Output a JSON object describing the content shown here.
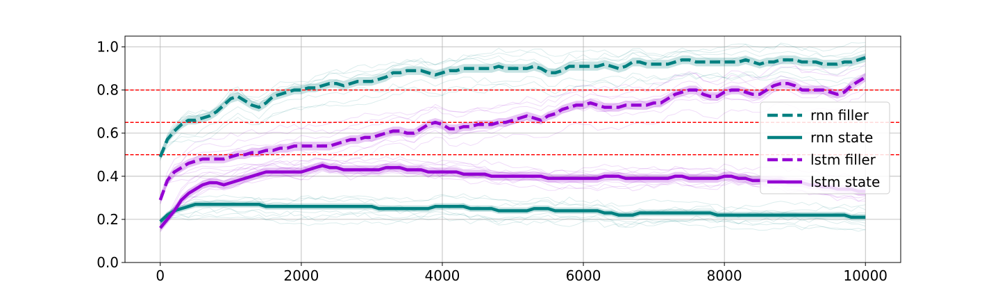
{
  "chart_data": {
    "type": "line",
    "title": "",
    "xlabel": "",
    "ylabel": "",
    "xlim": [
      -500,
      10500
    ],
    "ylim": [
      0.0,
      1.05
    ],
    "xticks": [
      0,
      2000,
      4000,
      6000,
      8000,
      10000
    ],
    "xtick_labels": [
      "0",
      "2000",
      "4000",
      "6000",
      "8000",
      "10000"
    ],
    "yticks": [
      0.0,
      0.2,
      0.4,
      0.6,
      0.8,
      1.0
    ],
    "ytick_labels": [
      "0.0",
      "0.2",
      "0.4",
      "0.6",
      "0.8",
      "1.0"
    ],
    "grid": true,
    "legend_position": "right",
    "reference_lines": [
      {
        "y": 0.8,
        "color": "#ff0000",
        "style": "dashed"
      },
      {
        "y": 0.65,
        "color": "#ff0000",
        "style": "dashed"
      },
      {
        "y": 0.5,
        "color": "#ff0000",
        "style": "dashed"
      }
    ],
    "x": [
      0,
      100,
      200,
      300,
      400,
      500,
      600,
      700,
      800,
      900,
      1000,
      1100,
      1200,
      1300,
      1400,
      1500,
      1600,
      1700,
      1800,
      1900,
      2000,
      2100,
      2200,
      2300,
      2400,
      2500,
      2600,
      2700,
      2800,
      2900,
      3000,
      3100,
      3200,
      3300,
      3400,
      3500,
      3600,
      3700,
      3800,
      3900,
      4000,
      4100,
      4200,
      4300,
      4400,
      4500,
      4600,
      4700,
      4800,
      4900,
      5000,
      5100,
      5200,
      5300,
      5400,
      5500,
      5600,
      5700,
      5800,
      5900,
      6000,
      6100,
      6200,
      6300,
      6400,
      6500,
      6600,
      6700,
      6800,
      6900,
      7000,
      7100,
      7200,
      7300,
      7400,
      7500,
      7600,
      7700,
      7800,
      7900,
      8000,
      8100,
      8200,
      8300,
      8400,
      8500,
      8600,
      8700,
      8800,
      8900,
      9000,
      9100,
      9200,
      9300,
      9400,
      9500,
      9600,
      9700,
      9800,
      9900,
      10000
    ],
    "series": [
      {
        "name": "rnn filler",
        "color": "#008080",
        "style": "dashed",
        "band": 0.02,
        "values": [
          0.49,
          0.57,
          0.61,
          0.64,
          0.66,
          0.66,
          0.67,
          0.68,
          0.7,
          0.73,
          0.76,
          0.77,
          0.75,
          0.73,
          0.72,
          0.74,
          0.77,
          0.78,
          0.79,
          0.8,
          0.8,
          0.81,
          0.81,
          0.82,
          0.83,
          0.83,
          0.82,
          0.83,
          0.84,
          0.84,
          0.84,
          0.85,
          0.86,
          0.88,
          0.88,
          0.89,
          0.89,
          0.89,
          0.88,
          0.87,
          0.88,
          0.89,
          0.89,
          0.9,
          0.9,
          0.9,
          0.9,
          0.9,
          0.91,
          0.9,
          0.9,
          0.9,
          0.9,
          0.91,
          0.9,
          0.88,
          0.88,
          0.89,
          0.91,
          0.91,
          0.91,
          0.91,
          0.91,
          0.92,
          0.91,
          0.9,
          0.91,
          0.93,
          0.93,
          0.92,
          0.92,
          0.92,
          0.92,
          0.93,
          0.94,
          0.94,
          0.93,
          0.93,
          0.93,
          0.93,
          0.93,
          0.93,
          0.93,
          0.94,
          0.93,
          0.92,
          0.93,
          0.93,
          0.94,
          0.94,
          0.94,
          0.93,
          0.93,
          0.93,
          0.92,
          0.92,
          0.92,
          0.93,
          0.93,
          0.94,
          0.95
        ]
      },
      {
        "name": "rnn state",
        "color": "#008080",
        "style": "solid",
        "band": 0.015,
        "values": [
          0.19,
          0.22,
          0.24,
          0.25,
          0.26,
          0.27,
          0.27,
          0.27,
          0.27,
          0.27,
          0.27,
          0.27,
          0.27,
          0.27,
          0.27,
          0.26,
          0.26,
          0.26,
          0.26,
          0.26,
          0.26,
          0.26,
          0.26,
          0.26,
          0.26,
          0.26,
          0.26,
          0.26,
          0.26,
          0.26,
          0.26,
          0.25,
          0.25,
          0.25,
          0.25,
          0.25,
          0.25,
          0.25,
          0.25,
          0.26,
          0.26,
          0.26,
          0.26,
          0.26,
          0.25,
          0.25,
          0.25,
          0.25,
          0.24,
          0.24,
          0.24,
          0.24,
          0.24,
          0.25,
          0.25,
          0.25,
          0.24,
          0.24,
          0.24,
          0.24,
          0.24,
          0.24,
          0.24,
          0.23,
          0.23,
          0.22,
          0.22,
          0.22,
          0.23,
          0.23,
          0.23,
          0.23,
          0.23,
          0.23,
          0.23,
          0.23,
          0.23,
          0.23,
          0.23,
          0.22,
          0.22,
          0.22,
          0.22,
          0.22,
          0.22,
          0.22,
          0.22,
          0.22,
          0.22,
          0.22,
          0.22,
          0.22,
          0.22,
          0.22,
          0.22,
          0.22,
          0.22,
          0.22,
          0.21,
          0.21,
          0.21
        ]
      },
      {
        "name": "lstm filler",
        "color": "#9400d3",
        "style": "dashed",
        "band": 0.02,
        "values": [
          0.29,
          0.38,
          0.42,
          0.44,
          0.46,
          0.47,
          0.48,
          0.48,
          0.48,
          0.48,
          0.49,
          0.5,
          0.5,
          0.51,
          0.51,
          0.52,
          0.52,
          0.53,
          0.53,
          0.54,
          0.54,
          0.54,
          0.54,
          0.54,
          0.54,
          0.55,
          0.56,
          0.57,
          0.57,
          0.58,
          0.58,
          0.59,
          0.6,
          0.61,
          0.61,
          0.6,
          0.6,
          0.62,
          0.64,
          0.65,
          0.64,
          0.62,
          0.62,
          0.63,
          0.63,
          0.64,
          0.64,
          0.64,
          0.65,
          0.65,
          0.66,
          0.67,
          0.68,
          0.67,
          0.66,
          0.68,
          0.69,
          0.71,
          0.72,
          0.73,
          0.73,
          0.74,
          0.73,
          0.72,
          0.72,
          0.72,
          0.73,
          0.73,
          0.73,
          0.73,
          0.74,
          0.74,
          0.76,
          0.78,
          0.79,
          0.8,
          0.8,
          0.78,
          0.77,
          0.77,
          0.79,
          0.8,
          0.8,
          0.79,
          0.78,
          0.78,
          0.8,
          0.82,
          0.83,
          0.83,
          0.82,
          0.8,
          0.8,
          0.8,
          0.8,
          0.79,
          0.78,
          0.79,
          0.82,
          0.84,
          0.86
        ]
      },
      {
        "name": "lstm state",
        "color": "#9400d3",
        "style": "solid",
        "band": 0.02,
        "values": [
          0.16,
          0.2,
          0.24,
          0.29,
          0.32,
          0.34,
          0.36,
          0.37,
          0.37,
          0.36,
          0.37,
          0.38,
          0.39,
          0.4,
          0.41,
          0.42,
          0.42,
          0.42,
          0.42,
          0.42,
          0.42,
          0.43,
          0.44,
          0.45,
          0.44,
          0.44,
          0.43,
          0.43,
          0.43,
          0.43,
          0.43,
          0.43,
          0.44,
          0.44,
          0.44,
          0.43,
          0.43,
          0.43,
          0.42,
          0.42,
          0.42,
          0.42,
          0.42,
          0.41,
          0.41,
          0.41,
          0.41,
          0.4,
          0.4,
          0.4,
          0.4,
          0.4,
          0.4,
          0.4,
          0.4,
          0.39,
          0.39,
          0.39,
          0.39,
          0.39,
          0.39,
          0.39,
          0.39,
          0.4,
          0.4,
          0.4,
          0.39,
          0.39,
          0.39,
          0.39,
          0.39,
          0.39,
          0.39,
          0.4,
          0.4,
          0.39,
          0.39,
          0.39,
          0.39,
          0.39,
          0.4,
          0.4,
          0.39,
          0.39,
          0.38,
          0.38,
          0.38,
          0.38,
          0.38,
          0.37,
          0.37,
          0.37,
          0.36,
          0.36,
          0.35,
          0.35,
          0.34,
          0.34,
          0.34,
          0.33,
          0.33
        ]
      }
    ]
  }
}
